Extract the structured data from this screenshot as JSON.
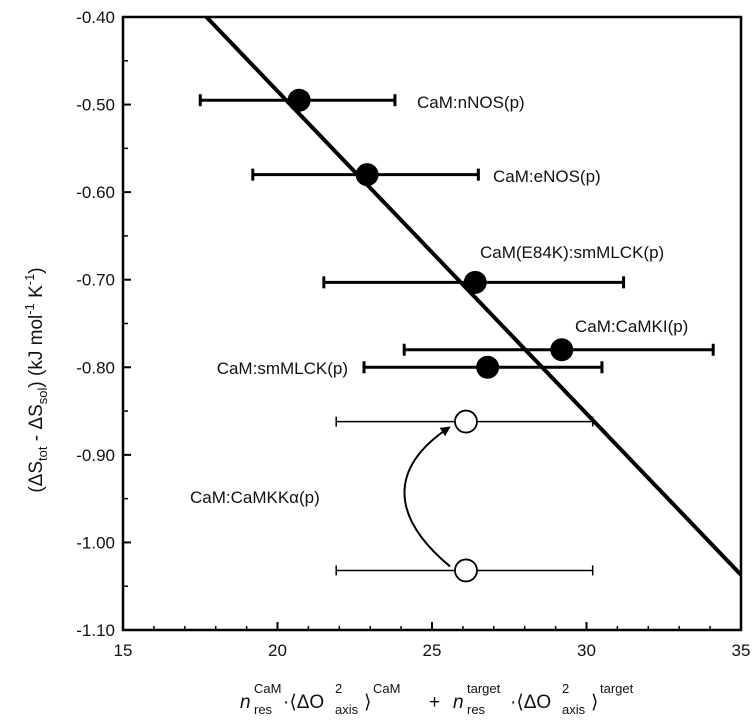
{
  "chart_data": {
    "type": "scatter",
    "xlim": [
      15,
      35
    ],
    "ylim": [
      -1.1,
      -0.4
    ],
    "x_ticks": [
      "15",
      "20",
      "25",
      "30",
      "35"
    ],
    "y_ticks": [
      "-0.40",
      "-0.50",
      "-0.60",
      "-0.70",
      "-0.80",
      "-0.90",
      "-1.00",
      "-1.10"
    ],
    "y_tick_values": [
      -0.4,
      -0.5,
      -0.6,
      -0.7,
      -0.8,
      -0.9,
      -1.0,
      -1.1
    ],
    "x_tick_values": [
      15,
      20,
      25,
      30,
      35
    ],
    "ylabel": {
      "open": "(ΔS",
      "sub1": "tot",
      "mid": " - ΔS",
      "sub2": "sol",
      "unit_open": ") (kJ mol",
      "sup1": "-1",
      "unit_mid": " K",
      "sup2": "-1",
      "unit_close": ")"
    },
    "xlabel": {
      "n1": "n",
      "n1_sup": "CaM",
      "n1_sub": "res",
      "dot1": "·⟨ΔO",
      "o1_sup": "2",
      "o1_sub": "axis",
      "close1": "⟩",
      "close1_sup": "CaM",
      "plus": "+",
      "n2": "n",
      "n2_sup": "target",
      "n2_sub": "res",
      "dot2": "·⟨ΔO",
      "o2_sup": "2",
      "o2_sub": "axis",
      "close2": "⟩",
      "close2_sup": "target"
    },
    "fit_line": {
      "x": [
        17.7,
        35.0
      ],
      "y": [
        -0.4,
        -1.037
      ]
    },
    "filled_points": [
      {
        "label": "CaM:nNOS(p)",
        "x": 20.7,
        "y": -0.495,
        "xerr": [
          17.5,
          23.8
        ]
      },
      {
        "label": "CaM:eNOS(p)",
        "x": 22.9,
        "y": -0.58,
        "xerr": [
          19.2,
          26.5
        ]
      },
      {
        "label": "CaM(E84K):smMLCK(p)",
        "x": 26.4,
        "y": -0.703,
        "xerr": [
          21.5,
          31.2
        ]
      },
      {
        "label": "CaM:CaMKI(p)",
        "x": 29.2,
        "y": -0.78,
        "xerr": [
          24.1,
          34.1
        ]
      },
      {
        "label": "CaM:smMLCK(p)",
        "x": 26.8,
        "y": -0.8,
        "xerr": [
          22.8,
          30.5
        ]
      }
    ],
    "open_points": [
      {
        "x": 26.1,
        "y": -0.862,
        "xerr": [
          21.9,
          30.2
        ]
      },
      {
        "x": 26.1,
        "y": -1.032,
        "xerr": [
          21.9,
          30.2
        ]
      }
    ],
    "open_label": "CaM:CaMKKα(p)",
    "colors": {
      "filled": "#000000",
      "open": "#ffffff",
      "line": "#000000"
    }
  }
}
